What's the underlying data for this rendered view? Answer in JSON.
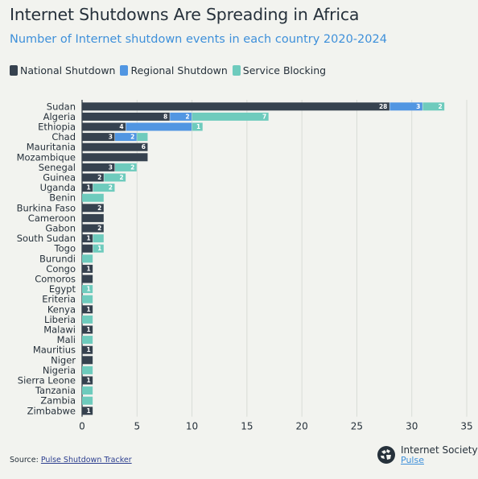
{
  "header": {
    "title": "Internet Shutdowns Are Spreading in Africa",
    "subtitle": "Number of Internet shutdown events in each country 2020-2024"
  },
  "colors": {
    "national": "#36424f",
    "regional": "#5196e2",
    "service": "#6ecbbd",
    "grid": "#d9dcd7",
    "axis": "#26313b"
  },
  "chart_data": {
    "type": "bar",
    "orientation": "horizontal",
    "stacked": true,
    "categories": [
      "Sudan",
      "Algeria",
      "Ethiopia",
      "Chad",
      "Mauritania",
      "Mozambique",
      "Senegal",
      "Guinea",
      "Uganda",
      "Benin",
      "Burkina Faso",
      "Cameroon",
      "Gabon",
      "South Sudan",
      "Togo",
      "Burundi",
      "Congo",
      "Comoros",
      "Egypt",
      "Eriteria",
      "Kenya",
      "Liberia",
      "Malawi",
      "Mali",
      "Mauritius",
      "Niger",
      "Nigeria",
      "Sierra Leone",
      "Tanzania",
      "Zambia",
      "Zimbabwe"
    ],
    "series": [
      {
        "name": "National Shutdown",
        "color": "#36424f",
        "values": [
          28,
          8,
          4,
          3,
          6,
          6,
          3,
          2,
          1,
          0,
          2,
          2,
          2,
          1,
          1,
          0,
          1,
          1,
          0,
          0,
          1,
          0,
          1,
          0,
          1,
          1,
          0,
          1,
          0,
          0,
          1
        ],
        "labels": [
          "28",
          "8",
          "4",
          "3",
          "6",
          "",
          "3",
          "2",
          "1",
          "",
          "2",
          "",
          "2",
          "1",
          "",
          "",
          "1",
          "",
          "",
          "",
          "1",
          "",
          "1",
          "",
          "1",
          "",
          "",
          "1",
          "",
          "",
          "1"
        ]
      },
      {
        "name": "Regional Shutdown",
        "color": "#5196e2",
        "values": [
          3,
          2,
          6,
          2,
          0,
          0,
          0,
          0,
          0,
          0,
          0,
          0,
          0,
          0,
          0,
          0,
          0,
          0,
          0,
          0,
          0,
          0,
          0,
          0,
          0,
          0,
          0,
          0,
          0,
          0,
          0
        ],
        "labels": [
          "3",
          "2",
          "",
          "2",
          "",
          "",
          "",
          "",
          "",
          "",
          "",
          "",
          "",
          "",
          "",
          "",
          "",
          "",
          "",
          "",
          "",
          "",
          "",
          "",
          "",
          "",
          "",
          "",
          "",
          "",
          ""
        ]
      },
      {
        "name": "Service Blocking",
        "color": "#6ecbbd",
        "values": [
          2,
          7,
          1,
          1,
          0,
          0,
          2,
          2,
          2,
          2,
          0,
          0,
          0,
          1,
          1,
          1,
          0,
          0,
          1,
          1,
          0,
          1,
          0,
          1,
          0,
          0,
          1,
          0,
          1,
          1,
          0
        ],
        "labels": [
          "2",
          "7",
          "1",
          "",
          "",
          "",
          "2",
          "2",
          "2",
          "",
          "",
          "",
          "",
          "",
          "1",
          "",
          "",
          "",
          "1",
          "",
          "",
          "",
          "",
          "",
          "",
          "",
          "",
          "",
          "",
          "",
          ""
        ]
      }
    ],
    "xlim": [
      0,
      35
    ],
    "xticks": [
      0,
      5,
      10,
      15,
      20,
      25,
      30,
      35
    ],
    "grid": true,
    "legend_position": "top-left"
  },
  "footer": {
    "source_prefix": "Source:",
    "source_link": "Pulse Shutdown Tracker",
    "brand_name": "Internet Society",
    "brand_sub": "Pulse"
  }
}
